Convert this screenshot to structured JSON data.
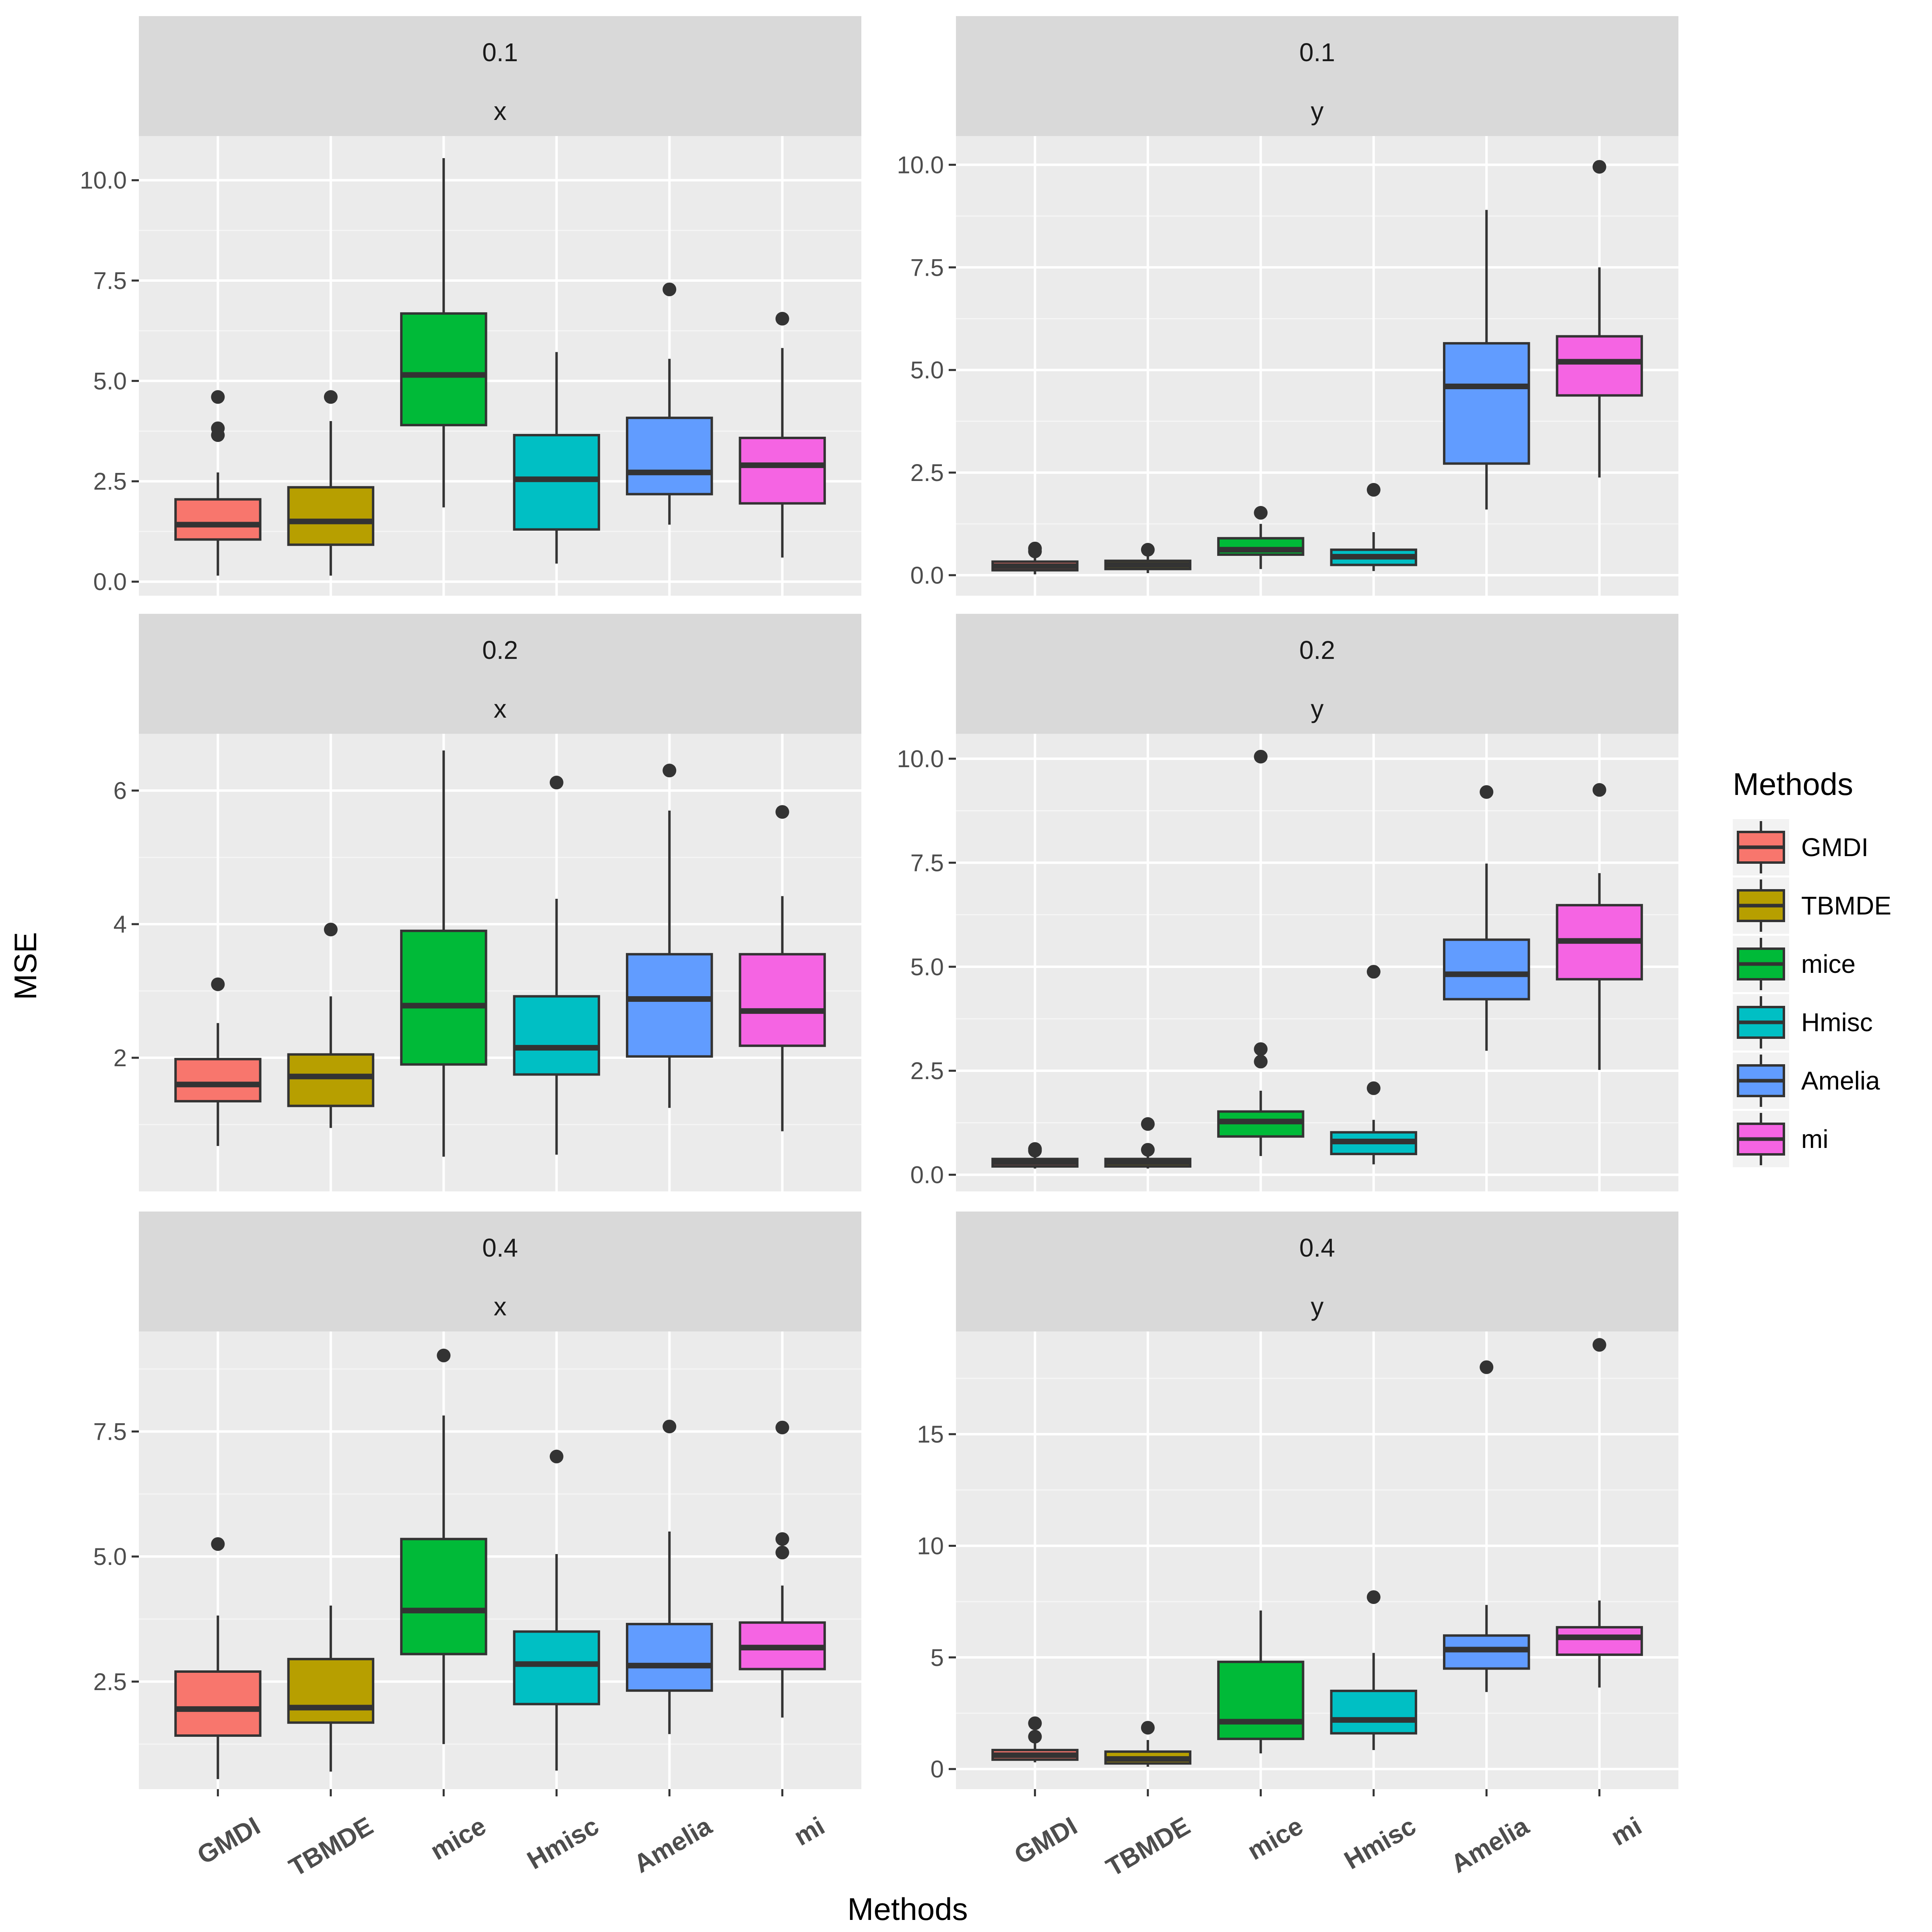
{
  "chart_data": {
    "type": "boxplot",
    "xlabel": "Methods",
    "ylabel": "MSE",
    "legend": {
      "title": "Methods",
      "position": "right",
      "entries": [
        "GMDI",
        "TBMDE",
        "mice",
        "Hmisc",
        "Amelia",
        "mi"
      ]
    },
    "categories": [
      "GMDI",
      "TBMDE",
      "mice",
      "Hmisc",
      "Amelia",
      "mi"
    ],
    "colors": [
      "#F8766D",
      "#B79F00",
      "#00BA38",
      "#00BFC4",
      "#619CFF",
      "#F564E3"
    ],
    "panels": [
      {
        "strip_top": "0.1",
        "strip_bottom": "x",
        "ylim": [
          -0.35,
          11.1
        ],
        "yticks": [
          0.0,
          2.5,
          5.0,
          7.5,
          10.0
        ],
        "ytick_labels": [
          "0.0",
          "2.5",
          "5.0",
          "7.5",
          "10.0"
        ],
        "boxes": [
          {
            "min": 0.15,
            "q1": 1.05,
            "median": 1.42,
            "q3": 2.05,
            "max": 2.72,
            "outliers": [
              3.65,
              3.82,
              4.6
            ]
          },
          {
            "min": 0.15,
            "q1": 0.92,
            "median": 1.5,
            "q3": 2.35,
            "max": 4.0,
            "outliers": [
              4.6
            ]
          },
          {
            "min": 1.85,
            "q1": 3.9,
            "median": 5.15,
            "q3": 6.68,
            "max": 10.55,
            "outliers": []
          },
          {
            "min": 0.45,
            "q1": 1.3,
            "median": 2.55,
            "q3": 3.65,
            "max": 5.72,
            "outliers": []
          },
          {
            "min": 1.42,
            "q1": 2.18,
            "median": 2.72,
            "q3": 4.08,
            "max": 5.55,
            "outliers": [
              7.28
            ]
          },
          {
            "min": 0.6,
            "q1": 1.95,
            "median": 2.9,
            "q3": 3.58,
            "max": 5.82,
            "outliers": [
              6.55
            ]
          }
        ]
      },
      {
        "strip_top": "0.1",
        "strip_bottom": "y",
        "ylim": [
          -0.5,
          10.7
        ],
        "yticks": [
          0.0,
          2.5,
          5.0,
          7.5,
          10.0
        ],
        "ytick_labels": [
          "0.0",
          "2.5",
          "5.0",
          "7.5",
          "10.0"
        ],
        "boxes": [
          {
            "min": 0.02,
            "q1": 0.12,
            "median": 0.22,
            "q3": 0.33,
            "max": 0.5,
            "outliers": [
              0.58,
              0.65
            ]
          },
          {
            "min": 0.05,
            "q1": 0.15,
            "median": 0.25,
            "q3": 0.35,
            "max": 0.5,
            "outliers": [
              0.62
            ]
          },
          {
            "min": 0.15,
            "q1": 0.5,
            "median": 0.62,
            "q3": 0.9,
            "max": 1.25,
            "outliers": [
              1.52
            ]
          },
          {
            "min": 0.1,
            "q1": 0.25,
            "median": 0.45,
            "q3": 0.62,
            "max": 1.05,
            "outliers": [
              2.08
            ]
          },
          {
            "min": 1.6,
            "q1": 2.72,
            "median": 4.6,
            "q3": 5.65,
            "max": 8.9,
            "outliers": []
          },
          {
            "min": 2.38,
            "q1": 4.38,
            "median": 5.2,
            "q3": 5.82,
            "max": 7.5,
            "outliers": [
              9.95
            ]
          }
        ]
      },
      {
        "strip_top": "0.2",
        "strip_bottom": "x",
        "ylim": [
          0.0,
          6.85
        ],
        "yticks": [
          2,
          4,
          6
        ],
        "ytick_labels": [
          "2",
          "4",
          "6"
        ],
        "boxes": [
          {
            "min": 0.68,
            "q1": 1.35,
            "median": 1.6,
            "q3": 1.98,
            "max": 2.52,
            "outliers": [
              3.1
            ]
          },
          {
            "min": 0.95,
            "q1": 1.28,
            "median": 1.72,
            "q3": 2.05,
            "max": 2.92,
            "outliers": [
              3.92
            ]
          },
          {
            "min": 0.52,
            "q1": 1.9,
            "median": 2.78,
            "q3": 3.9,
            "max": 6.6,
            "outliers": []
          },
          {
            "min": 0.55,
            "q1": 1.75,
            "median": 2.15,
            "q3": 2.92,
            "max": 4.38,
            "outliers": [
              6.12
            ]
          },
          {
            "min": 1.25,
            "q1": 2.02,
            "median": 2.88,
            "q3": 3.55,
            "max": 5.7,
            "outliers": [
              6.3
            ]
          },
          {
            "min": 0.9,
            "q1": 2.18,
            "median": 2.7,
            "q3": 3.55,
            "max": 4.42,
            "outliers": [
              5.68
            ]
          }
        ]
      },
      {
        "strip_top": "0.2",
        "strip_bottom": "y",
        "ylim": [
          -0.4,
          10.6
        ],
        "yticks": [
          0.0,
          2.5,
          5.0,
          7.5,
          10.0
        ],
        "ytick_labels": [
          "0.0",
          "2.5",
          "5.0",
          "7.5",
          "10.0"
        ],
        "boxes": [
          {
            "min": 0.15,
            "q1": 0.2,
            "median": 0.3,
            "q3": 0.38,
            "max": 0.45,
            "outliers": [
              0.58,
              0.62
            ]
          },
          {
            "min": 0.15,
            "q1": 0.2,
            "median": 0.3,
            "q3": 0.38,
            "max": 0.45,
            "outliers": [
              0.6,
              1.22
            ]
          },
          {
            "min": 0.45,
            "q1": 0.92,
            "median": 1.28,
            "q3": 1.52,
            "max": 2.02,
            "outliers": [
              2.72,
              3.02,
              10.05
            ]
          },
          {
            "min": 0.25,
            "q1": 0.5,
            "median": 0.8,
            "q3": 1.02,
            "max": 1.32,
            "outliers": [
              2.08,
              4.88
            ]
          },
          {
            "min": 2.98,
            "q1": 4.22,
            "median": 4.82,
            "q3": 5.65,
            "max": 7.48,
            "outliers": [
              9.2
            ]
          },
          {
            "min": 2.52,
            "q1": 4.7,
            "median": 5.62,
            "q3": 6.48,
            "max": 7.25,
            "outliers": [
              9.25
            ]
          }
        ]
      },
      {
        "strip_top": "0.4",
        "strip_bottom": "x",
        "ylim": [
          0.35,
          9.5
        ],
        "yticks": [
          2.5,
          5.0,
          7.5
        ],
        "ytick_labels": [
          "2.5",
          "5.0",
          "7.5"
        ],
        "boxes": [
          {
            "min": 0.55,
            "q1": 1.42,
            "median": 1.95,
            "q3": 2.7,
            "max": 3.82,
            "outliers": [
              5.25
            ]
          },
          {
            "min": 0.7,
            "q1": 1.68,
            "median": 1.98,
            "q3": 2.95,
            "max": 4.02,
            "outliers": []
          },
          {
            "min": 1.25,
            "q1": 3.05,
            "median": 3.92,
            "q3": 5.35,
            "max": 7.82,
            "outliers": [
              9.02
            ]
          },
          {
            "min": 0.72,
            "q1": 2.05,
            "median": 2.85,
            "q3": 3.5,
            "max": 5.05,
            "outliers": [
              7.0
            ]
          },
          {
            "min": 1.45,
            "q1": 2.32,
            "median": 2.82,
            "q3": 3.65,
            "max": 5.5,
            "outliers": [
              7.6
            ]
          },
          {
            "min": 1.78,
            "q1": 2.75,
            "median": 3.18,
            "q3": 3.68,
            "max": 4.42,
            "outliers": [
              5.08,
              5.35,
              7.58
            ]
          }
        ]
      },
      {
        "strip_top": "0.4",
        "strip_bottom": "y",
        "ylim": [
          -0.9,
          19.6
        ],
        "yticks": [
          0,
          5,
          10,
          15
        ],
        "ytick_labels": [
          "0",
          "5",
          "10",
          "15"
        ],
        "boxes": [
          {
            "min": 0.3,
            "q1": 0.42,
            "median": 0.62,
            "q3": 0.85,
            "max": 1.2,
            "outliers": [
              1.45,
              2.05
            ]
          },
          {
            "min": 0.1,
            "q1": 0.25,
            "median": 0.45,
            "q3": 0.78,
            "max": 1.3,
            "outliers": [
              1.85
            ]
          },
          {
            "min": 0.7,
            "q1": 1.35,
            "median": 2.12,
            "q3": 4.8,
            "max": 7.1,
            "outliers": []
          },
          {
            "min": 0.85,
            "q1": 1.6,
            "median": 2.2,
            "q3": 3.5,
            "max": 5.2,
            "outliers": [
              7.7
            ]
          },
          {
            "min": 3.45,
            "q1": 4.5,
            "median": 5.35,
            "q3": 5.98,
            "max": 7.35,
            "outliers": [
              18.0
            ]
          },
          {
            "min": 3.65,
            "q1": 5.12,
            "median": 5.9,
            "q3": 6.35,
            "max": 7.55,
            "outliers": [
              19.0
            ]
          }
        ]
      }
    ]
  }
}
